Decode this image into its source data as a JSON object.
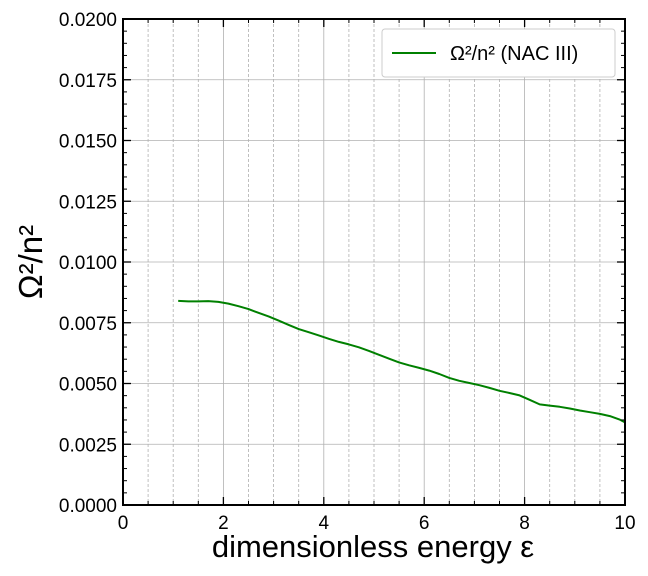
{
  "chart_data": {
    "type": "line",
    "xlabel": "dimensionless energy ε",
    "ylabel": "Ω²/n²",
    "xlim": [
      0,
      10
    ],
    "ylim": [
      0,
      0.02
    ],
    "x_ticks": [
      0,
      2,
      4,
      6,
      8,
      10
    ],
    "x_tick_labels": [
      "0",
      "2",
      "4",
      "6",
      "8",
      "10"
    ],
    "y_ticks": [
      0,
      0.0025,
      0.005,
      0.0075,
      0.01,
      0.0125,
      0.015,
      0.0175,
      0.02
    ],
    "y_tick_labels": [
      "0.0000",
      "0.0025",
      "0.0050",
      "0.0075",
      "0.0100",
      "0.0125",
      "0.0150",
      "0.0175",
      "0.0200"
    ],
    "grid": true,
    "legend_position": "top-right",
    "legend_label": "Ω²/n² (NAC III)",
    "series": [
      {
        "name": "Ω²/n² (NAC III)",
        "color": "#008000",
        "x": [
          1.1,
          1.3,
          1.5,
          1.7,
          1.9,
          2.1,
          2.3,
          2.5,
          2.7,
          2.9,
          3.1,
          3.3,
          3.5,
          3.7,
          3.9,
          4.1,
          4.3,
          4.5,
          4.7,
          4.9,
          5.1,
          5.3,
          5.5,
          5.7,
          5.9,
          6.1,
          6.3,
          6.5,
          6.7,
          6.9,
          7.1,
          7.3,
          7.5,
          7.7,
          7.9,
          8.1,
          8.3,
          8.5,
          8.7,
          8.9,
          9.1,
          9.3,
          9.5,
          9.7,
          9.9,
          10.0
        ],
        "y": [
          0.0084,
          0.00838,
          0.00838,
          0.00839,
          0.00836,
          0.00829,
          0.00818,
          0.00806,
          0.00791,
          0.00776,
          0.00759,
          0.00741,
          0.00724,
          0.00711,
          0.00698,
          0.00684,
          0.00671,
          0.00661,
          0.00649,
          0.00634,
          0.00618,
          0.00602,
          0.00587,
          0.00575,
          0.00564,
          0.00553,
          0.00539,
          0.00523,
          0.00511,
          0.00502,
          0.00493,
          0.00482,
          0.0047,
          0.00461,
          0.00451,
          0.00433,
          0.00414,
          0.00409,
          0.00404,
          0.00397,
          0.00389,
          0.00382,
          0.00375,
          0.00366,
          0.00351,
          0.0034
        ]
      }
    ]
  }
}
